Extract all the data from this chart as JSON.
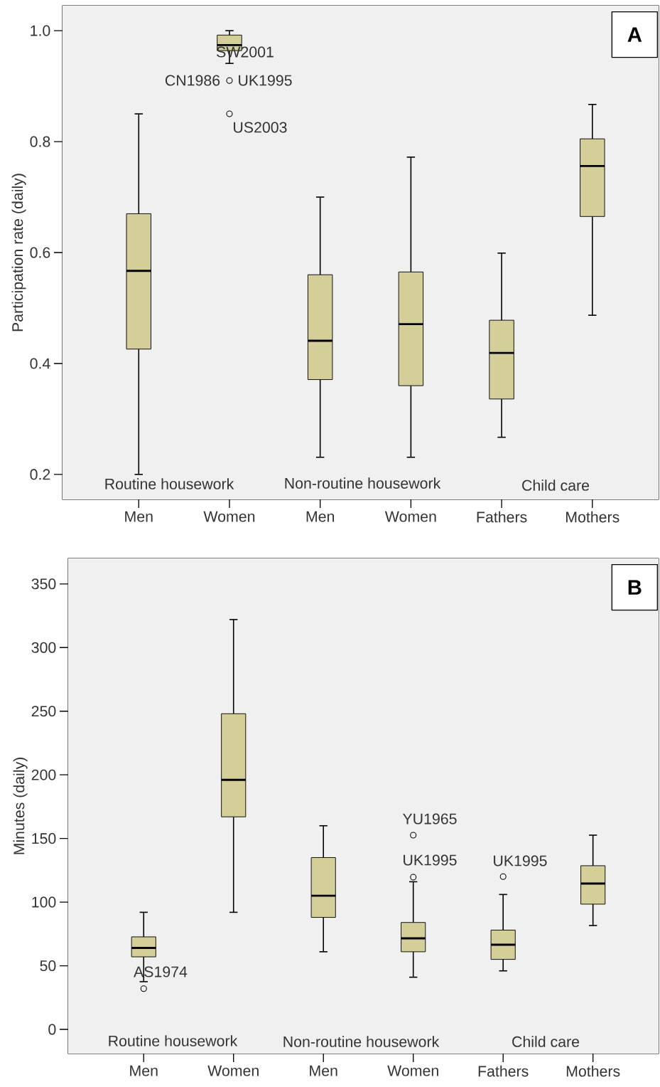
{
  "chart_data": [
    {
      "type": "box",
      "title": "A",
      "ylabel": "Participation rate (daily)",
      "categories": [
        "Men",
        "Women",
        "Men",
        "Women",
        "Fathers",
        "Mothers"
      ],
      "ylim": [
        0.155,
        1.045
      ],
      "yticks": [
        {
          "value": 0.2,
          "label": "0.2"
        },
        {
          "value": 0.4,
          "label": "0.4"
        },
        {
          "value": 0.6,
          "label": "0.6"
        },
        {
          "value": 0.8,
          "label": "0.8"
        },
        {
          "value": 1.0,
          "label": "1.0"
        }
      ],
      "series": [
        {
          "color": "#d4cf98",
          "boxes": [
            {
              "low": 0.2,
              "q1": 0.426,
              "median": 0.567,
              "q3": 0.67,
              "high": 0.85
            },
            null,
            {
              "low": 0.231,
              "q1": 0.371,
              "median": 0.441,
              "q3": 0.56,
              "high": 0.7
            },
            null,
            {
              "low": 0.267,
              "q1": 0.336,
              "median": 0.419,
              "q3": 0.478,
              "high": 0.599
            },
            null
          ]
        },
        {
          "color": "#d4cf98",
          "boxes": [
            null,
            {
              "low": 0.941,
              "q1": 0.964,
              "median": 0.974,
              "q3": 0.992,
              "high": 1.0,
              "outliers": [
                0.91,
                0.85
              ]
            },
            null,
            {
              "low": 0.231,
              "q1": 0.36,
              "median": 0.471,
              "q3": 0.565,
              "high": 0.772
            },
            null,
            {
              "low": 0.487,
              "q1": 0.665,
              "median": 0.756,
              "q3": 0.805,
              "high": 0.867
            }
          ]
        }
      ],
      "annotations": [
        "Routine housework",
        "Non-routine housework",
        "Child care",
        "SW2001",
        "CN1986",
        "UK1995",
        "US2003"
      ]
    },
    {
      "type": "box",
      "title": "B",
      "ylabel": "Minutes (daily)",
      "categories": [
        "Men",
        "Women",
        "Men",
        "Women",
        "Fathers",
        "Mothers"
      ],
      "ylim": [
        -19,
        370
      ],
      "yticks": [
        0,
        50,
        100,
        150,
        200,
        250,
        300,
        350
      ],
      "series": [
        {
          "color": "#d4cf98",
          "boxes": [
            {
              "low": 37.5,
              "q1": 57,
              "median": 64,
              "q3": 72.7,
              "high": 92,
              "outliers": [
                32
              ]
            },
            null,
            {
              "low": 61,
              "q1": 88,
              "median": 105,
              "q3": 135,
              "high": 160
            },
            null,
            {
              "low": 46,
              "q1": 55,
              "median": 66.5,
              "q3": 78,
              "high": 106,
              "outliers": [
                120
              ]
            },
            null
          ]
        },
        {
          "color": "#d4cf98",
          "boxes": [
            null,
            {
              "low": 92,
              "q1": 167,
              "median": 196,
              "q3": 248,
              "high": 322
            },
            null,
            {
              "low": 41,
              "q1": 61,
              "median": 71.5,
              "q3": 84,
              "high": 116,
              "outliers": [
                152.6,
                119.6
              ]
            },
            null,
            {
              "low": 81.6,
              "q1": 98.4,
              "median": 114.6,
              "q3": 128.6,
              "high": 152.6
            }
          ]
        }
      ],
      "annotations": [
        "Routine housework",
        "Non-routine housework",
        "Child care",
        "AS1974",
        "YU1965",
        "UK1995",
        "UK1995"
      ]
    }
  ]
}
